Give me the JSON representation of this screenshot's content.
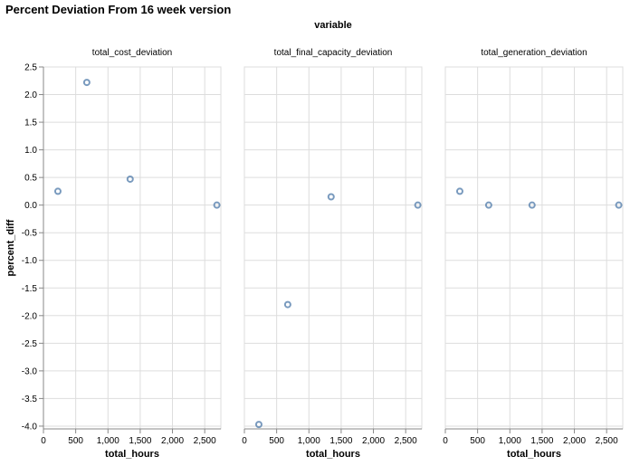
{
  "chart_data": {
    "type": "scatter",
    "title": "Percent Deviation From 16 week version",
    "facet_header": "variable",
    "xlabel": "total_hours",
    "ylabel": "percent_diff",
    "xlim": [
      0,
      2750
    ],
    "ylim": [
      -4.05,
      2.5
    ],
    "x_ticks": [
      0,
      500,
      1000,
      1500,
      2000,
      2500
    ],
    "x_tick_labels": [
      "0",
      "500",
      "1,000",
      "1,500",
      "2,000",
      "2,500"
    ],
    "y_ticks": [
      2.5,
      2.0,
      1.5,
      1.0,
      0.5,
      0.0,
      -0.5,
      -1.0,
      -1.5,
      -2.0,
      -2.5,
      -3.0,
      -3.5,
      -4.0
    ],
    "y_tick_labels": [
      "2.5",
      "2.0",
      "1.5",
      "1.0",
      "0.5",
      "0.0",
      "-0.5",
      "-1.0",
      "-1.5",
      "-2.0",
      "-2.5",
      "-3.0",
      "-3.5",
      "-4.0"
    ],
    "grid": true,
    "point_color": "#4c78a8",
    "facets": [
      {
        "name": "total_cost_deviation",
        "points": [
          {
            "x": 224,
            "y": 0.25
          },
          {
            "x": 672,
            "y": 2.22
          },
          {
            "x": 1344,
            "y": 0.47
          },
          {
            "x": 2688,
            "y": 0.0
          }
        ]
      },
      {
        "name": "total_final_capacity_deviation",
        "points": [
          {
            "x": 224,
            "y": -3.97
          },
          {
            "x": 672,
            "y": -1.8
          },
          {
            "x": 1344,
            "y": 0.15
          },
          {
            "x": 2688,
            "y": 0.0
          }
        ]
      },
      {
        "name": "total_generation_deviation",
        "points": [
          {
            "x": 224,
            "y": 0.25
          },
          {
            "x": 672,
            "y": 0.0
          },
          {
            "x": 1344,
            "y": 0.0
          },
          {
            "x": 2688,
            "y": 0.0
          }
        ]
      }
    ]
  }
}
